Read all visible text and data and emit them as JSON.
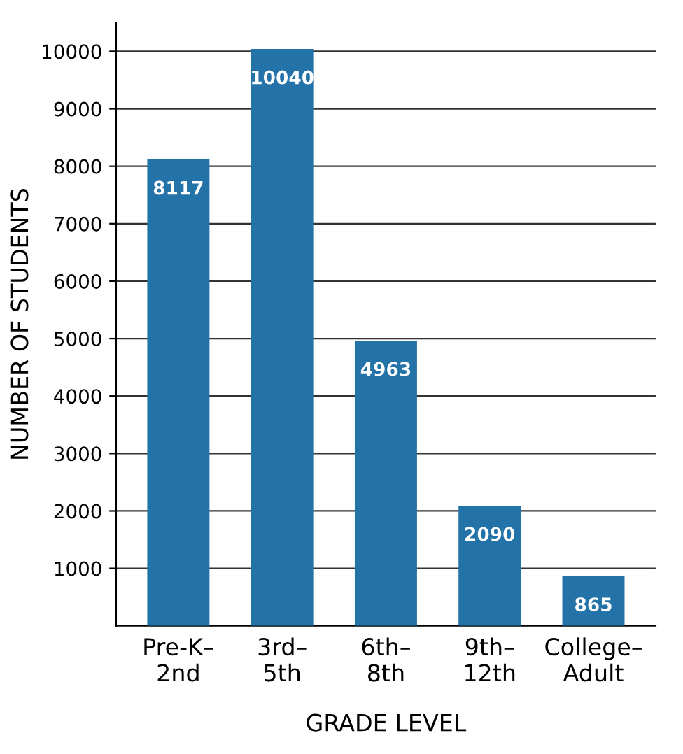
{
  "chart_data": {
    "type": "bar",
    "xlabel": "GRADE LEVEL",
    "ylabel": "NUMBER OF STUDENTS",
    "categories": [
      "Pre-K–\n2nd",
      "3rd–\n5th",
      "6th–\n8th",
      "9th–\n12th",
      "College–\nAdult"
    ],
    "values": [
      8117,
      10040,
      4963,
      2090,
      865
    ],
    "color": "#2372a8",
    "ylim": [
      0,
      10500
    ],
    "yticks": [
      1000,
      2000,
      3000,
      4000,
      5000,
      6000,
      7000,
      8000,
      9000,
      10000
    ],
    "grid": "y",
    "data_labels": true
  }
}
